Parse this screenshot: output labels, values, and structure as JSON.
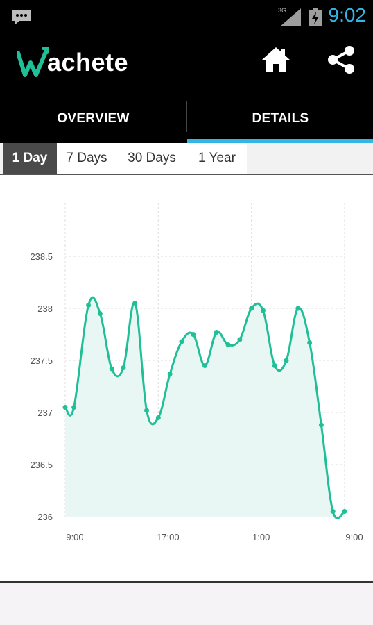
{
  "status_bar": {
    "time": "9:02",
    "network_label": "3G",
    "icons": [
      "chat-notification-icon",
      "signal-icon",
      "battery-charging-icon"
    ]
  },
  "action_bar": {
    "logo_text": "achete",
    "logo_mark": "W",
    "icons": [
      "home-icon",
      "share-icon"
    ]
  },
  "tabs": [
    {
      "label": "OVERVIEW",
      "selected": false
    },
    {
      "label": "DETAILS",
      "selected": true
    }
  ],
  "ranges": [
    {
      "label": "1 Day",
      "selected": true
    },
    {
      "label": "7 Days",
      "selected": false
    },
    {
      "label": "30 Days",
      "selected": false
    },
    {
      "label": "1 Year",
      "selected": false
    }
  ],
  "colors": {
    "accent": "#33b5e5",
    "line": "#1fbf98",
    "fill": "#e8f7f3",
    "logo_green": "#1fbf98"
  },
  "chart_data": {
    "type": "area",
    "title": "",
    "xlabel": "",
    "ylabel": "",
    "x_ticks": [
      "9:00",
      "17:00",
      "1:00",
      "9:00"
    ],
    "y_ticks": [
      "236",
      "236.5",
      "237",
      "237.5",
      "238",
      "238.5"
    ],
    "ylim": [
      236,
      239
    ],
    "xlim": [
      0,
      24
    ],
    "grid": true,
    "series": [
      {
        "x": [
          0,
          0.75,
          2,
          3,
          4,
          5,
          6,
          7,
          8,
          9,
          10,
          11,
          12,
          13,
          14,
          15,
          16,
          17,
          18,
          19,
          20,
          21,
          22,
          23,
          24
        ],
        "y": [
          237.05,
          237.05,
          238.03,
          237.95,
          237.42,
          237.43,
          238.05,
          237.02,
          236.95,
          237.37,
          237.68,
          237.75,
          237.45,
          237.77,
          237.65,
          237.7,
          238.0,
          237.98,
          237.45,
          237.5,
          238.0,
          237.67,
          236.88,
          236.05,
          236.05
        ]
      }
    ]
  }
}
